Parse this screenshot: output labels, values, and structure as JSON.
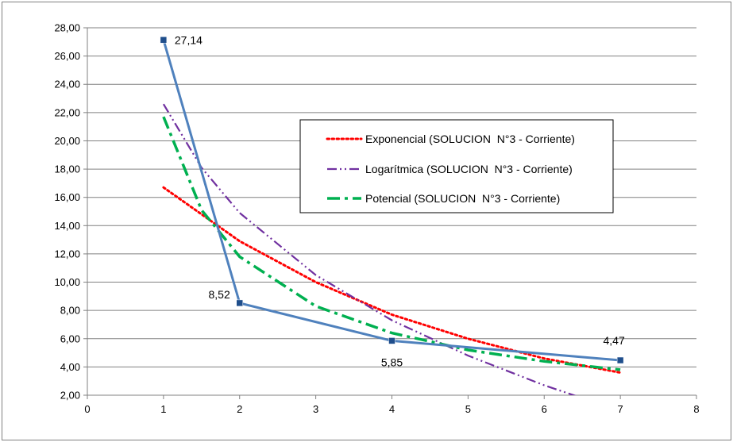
{
  "chart_data": {
    "type": "line",
    "title": "",
    "xlabel": "",
    "ylabel": "",
    "xlim": [
      0,
      8
    ],
    "ylim": [
      2,
      28
    ],
    "xticks": [
      0,
      1,
      2,
      3,
      4,
      5,
      6,
      7,
      8
    ],
    "yticks": [
      2,
      4,
      6,
      8,
      10,
      12,
      14,
      16,
      18,
      20,
      22,
      24,
      26,
      28
    ],
    "x_tick_labels": [
      "0",
      "1",
      "2",
      "3",
      "4",
      "5",
      "6",
      "7",
      "8"
    ],
    "y_tick_labels": [
      "2,00",
      "4,00",
      "6,00",
      "8,00",
      "10,00",
      "12,00",
      "14,00",
      "16,00",
      "18,00",
      "20,00",
      "22,00",
      "24,00",
      "26,00",
      "28,00"
    ],
    "grid": {
      "horizontal": true,
      "vertical": false
    },
    "legend": {
      "placement": "upper-right inside plot"
    },
    "series": [
      {
        "kind": "data",
        "style": "solid-with-square-markers",
        "color": "#4f81bd",
        "marker_color": "#1f4e8c",
        "points": [
          {
            "x": 1,
            "y": 27.14,
            "label": "27,14"
          },
          {
            "x": 2,
            "y": 8.52,
            "label": "8,52"
          },
          {
            "x": 4,
            "y": 5.85,
            "label": "5,85"
          },
          {
            "x": 7,
            "y": 4.47,
            "label": "4,47"
          }
        ]
      },
      {
        "kind": "trend",
        "name": "Exponencial (SOLUCION  N°3 - Corriente)",
        "style": "dotted",
        "color": "#ff0000",
        "x_range": [
          1,
          7
        ],
        "samples": [
          [
            1,
            16.7
          ],
          [
            2,
            12.9
          ],
          [
            3,
            10.0
          ],
          [
            4,
            7.7
          ],
          [
            5,
            6.0
          ],
          [
            6,
            4.6
          ],
          [
            7,
            3.6
          ]
        ]
      },
      {
        "kind": "trend",
        "name": "Logarítmica (SOLUCION  N°3 - Corriente)",
        "style": "dash-dot-dot",
        "color": "#7030a0",
        "x_range": [
          1,
          6.5
        ],
        "samples": [
          [
            1,
            22.6
          ],
          [
            1.5,
            18.1
          ],
          [
            2,
            14.9
          ],
          [
            3,
            10.5
          ],
          [
            4,
            7.3
          ],
          [
            5,
            4.8
          ],
          [
            6,
            2.7
          ],
          [
            6.5,
            1.8
          ]
        ]
      },
      {
        "kind": "trend",
        "name": "Potencial (SOLUCION  N°3 - Corriente)",
        "style": "long-dash-dot",
        "color": "#00b050",
        "x_range": [
          1,
          7
        ],
        "samples": [
          [
            1,
            21.7
          ],
          [
            1.5,
            15.1
          ],
          [
            2,
            11.8
          ],
          [
            3,
            8.3
          ],
          [
            4,
            6.4
          ],
          [
            5,
            5.2
          ],
          [
            6,
            4.4
          ],
          [
            7,
            3.8
          ]
        ]
      }
    ]
  }
}
